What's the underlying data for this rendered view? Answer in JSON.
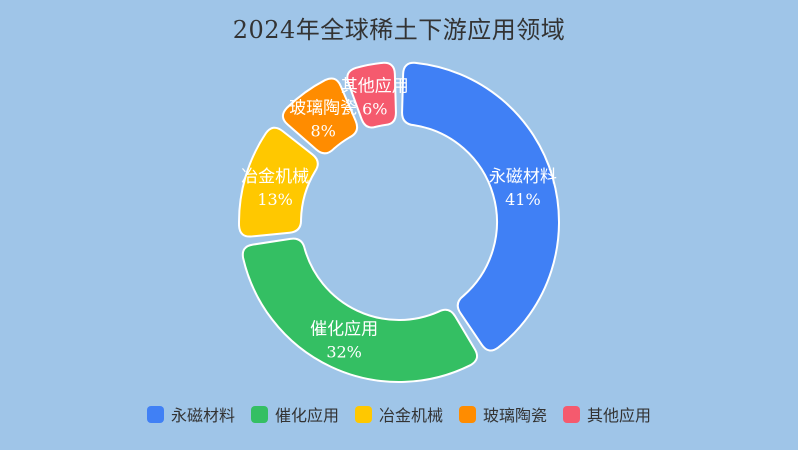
{
  "chart_data": {
    "type": "pie",
    "title": "2024年全球稀土下游应用领域",
    "subtitle": "",
    "categories": [
      "永磁材料",
      "催化应用",
      "冶金机械",
      "玻璃陶瓷",
      "其他应用"
    ],
    "values": [
      41,
      32,
      13,
      8,
      6
    ],
    "value_labels": [
      "41%",
      "32%",
      "13%",
      "8%",
      "6%"
    ],
    "colors": [
      "#4080f5",
      "#34bf63",
      "#ffc800",
      "#ff8c00",
      "#f55a6e"
    ],
    "legend_position": "bottom",
    "hole": true
  }
}
